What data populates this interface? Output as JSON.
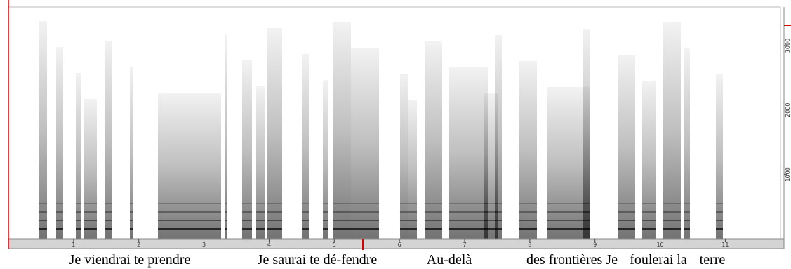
{
  "chart_data": {
    "type": "spectrogram",
    "xlim": [
      0,
      11.9
    ],
    "xticks": [
      1,
      2,
      3,
      4,
      5,
      6,
      7,
      8,
      9,
      10,
      11
    ],
    "ylim": [
      0,
      3600
    ],
    "yticks": [
      1000,
      2000,
      3000
    ],
    "annotations": [
      "Je viendrai te prendre",
      "Je saurai te dé-fendre",
      "Au-delà",
      "des frontières Je",
      "foulerai la",
      "terre"
    ]
  }
}
